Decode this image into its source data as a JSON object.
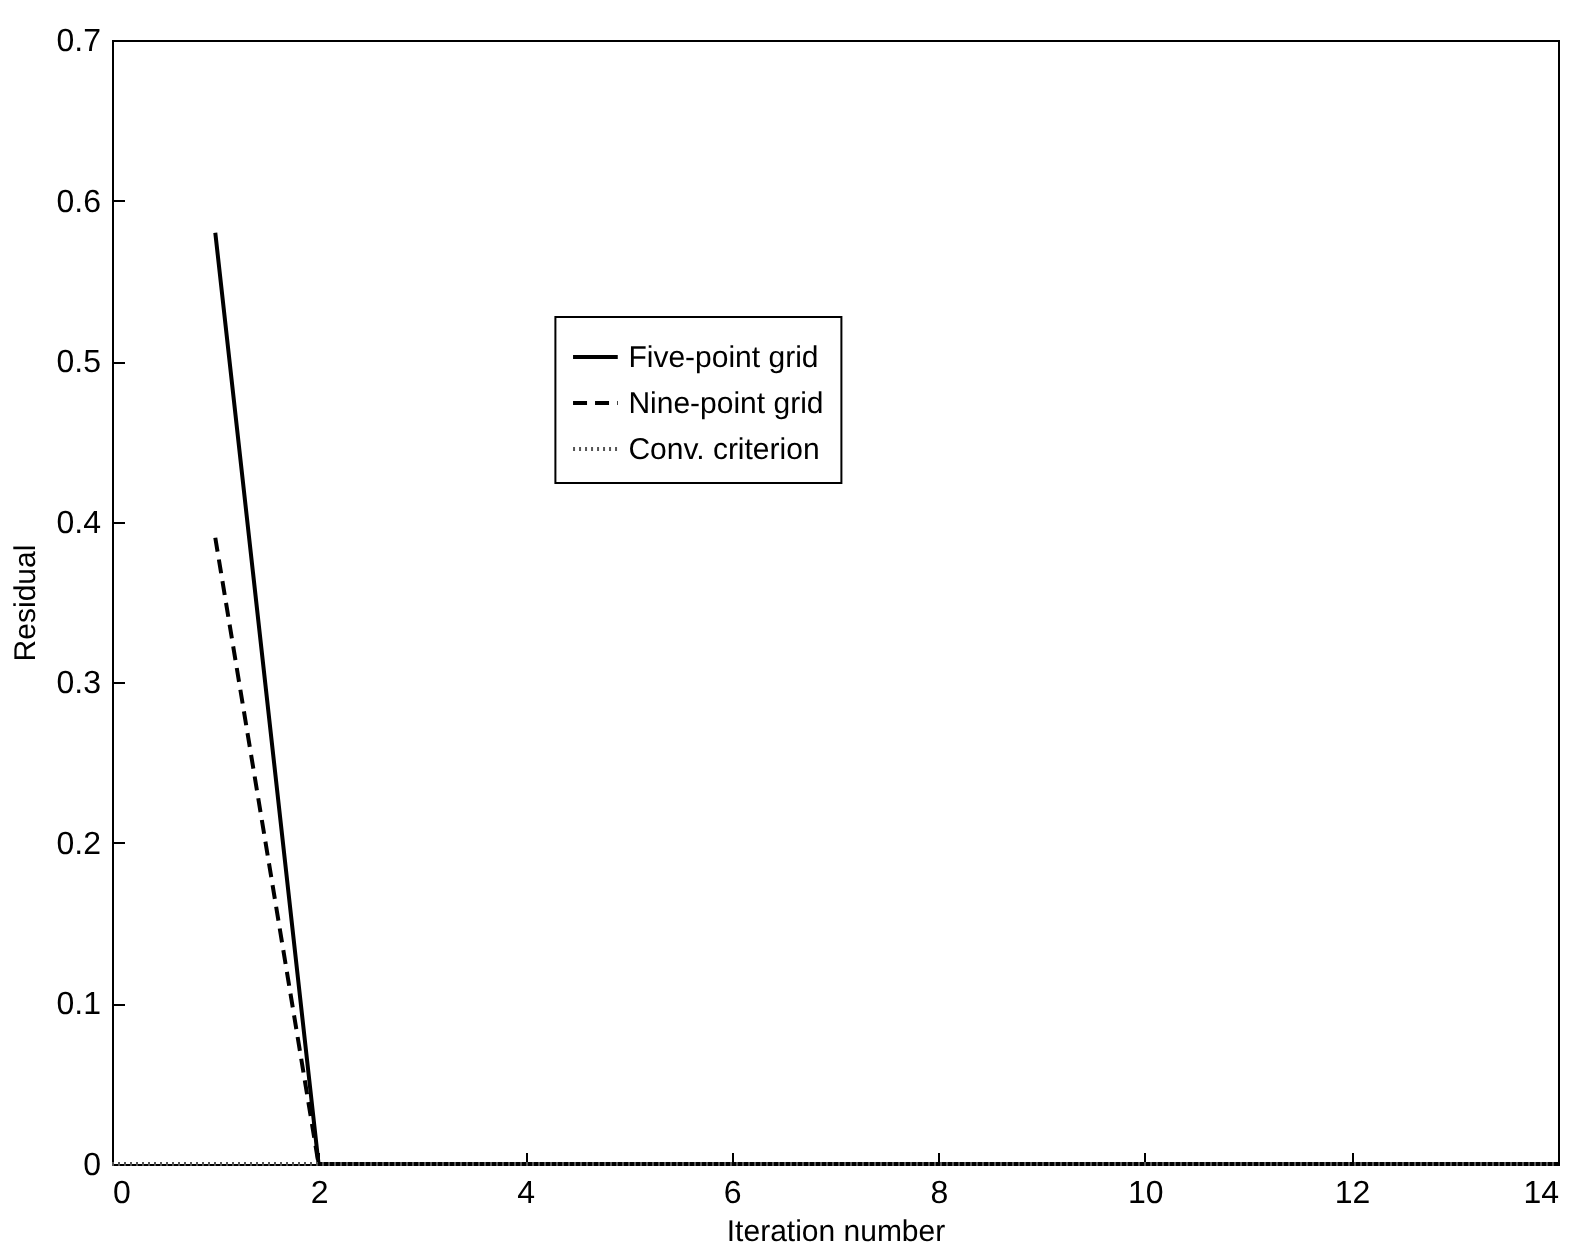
{
  "chart_data": {
    "type": "line",
    "xlabel": "Iteration number",
    "ylabel": "Residual",
    "xlim": [
      0,
      14
    ],
    "xticks": [
      0,
      2,
      4,
      6,
      8,
      10,
      12,
      14
    ],
    "ylim": [
      0,
      0.7
    ],
    "yticks": [
      0,
      0.1,
      0.2,
      0.3,
      0.4,
      0.5,
      0.6,
      0.7
    ],
    "legend": "center",
    "grid": false,
    "marker": "none",
    "series": [
      {
        "name": "Five-point grid",
        "color": "#000000",
        "line_style": "solid",
        "x": [
          1,
          2,
          14
        ],
        "values": [
          0.58,
          0,
          0
        ]
      },
      {
        "name": "Nine-point grid",
        "color": "#000000",
        "line_style": "dashed",
        "x": [
          1,
          2,
          14
        ],
        "values": [
          0.39,
          0,
          0
        ]
      },
      {
        "name": "Conv. criterion",
        "color": "#555555",
        "line_style": "dotted",
        "x": [
          0,
          14
        ],
        "values": [
          0,
          0
        ]
      }
    ]
  }
}
